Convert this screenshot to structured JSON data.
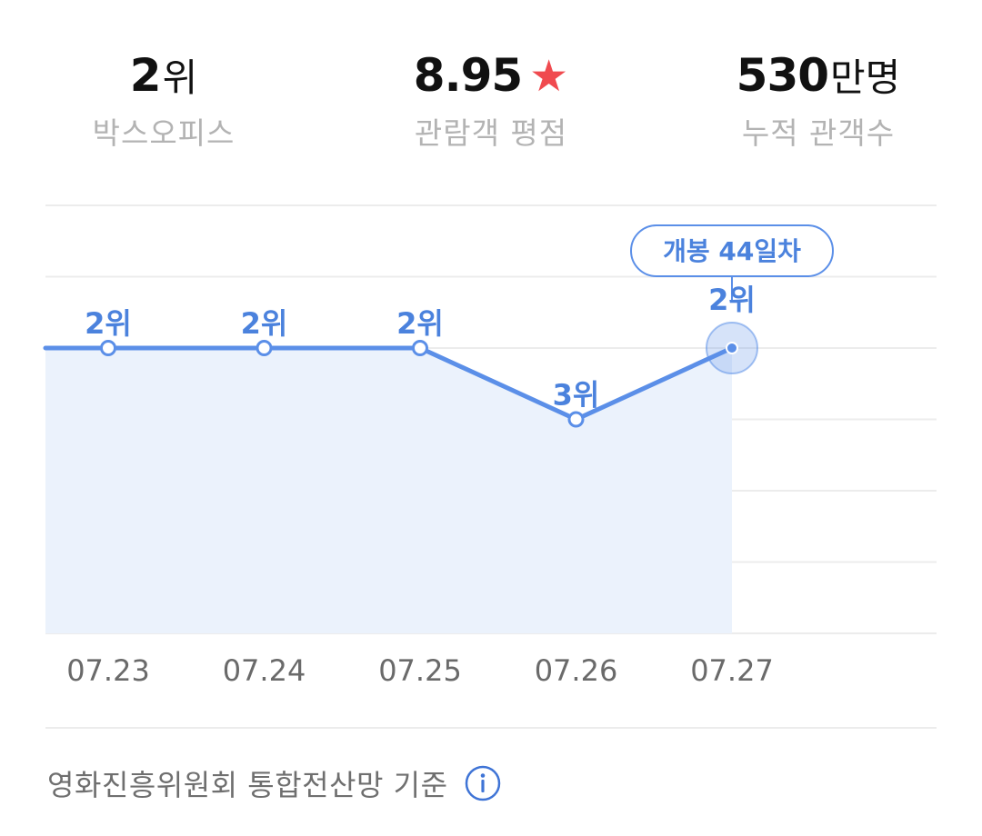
{
  "stats": {
    "rank": {
      "value": "2",
      "unit": "위",
      "label": "박스오피스"
    },
    "rating": {
      "value": "8.95",
      "icon": "star-icon",
      "icon_color": "#f04a4f",
      "label": "관람객 평점"
    },
    "audience": {
      "value": "530",
      "unit": "만명",
      "label": "누적 관객수"
    }
  },
  "chart_data": {
    "type": "line",
    "x": [
      "07.23",
      "07.24",
      "07.25",
      "07.26",
      "07.27"
    ],
    "y": [
      2,
      2,
      2,
      3,
      2
    ],
    "point_labels": [
      "2위",
      "2위",
      "2위",
      "3위",
      "2위"
    ],
    "y_axis": "rank, inverted (1 at top)",
    "y_range": [
      0,
      6
    ],
    "grid": true,
    "highlight": {
      "index": 4,
      "callout": "개봉 44일차"
    },
    "colors": {
      "line": "#5b8fe8",
      "fill": "#ebf2fc",
      "label": "#4b82dd",
      "grid": "#ececec"
    }
  },
  "footer": {
    "source": "영화진흥위원회 통합전산망 기준",
    "icon": "info-icon"
  }
}
